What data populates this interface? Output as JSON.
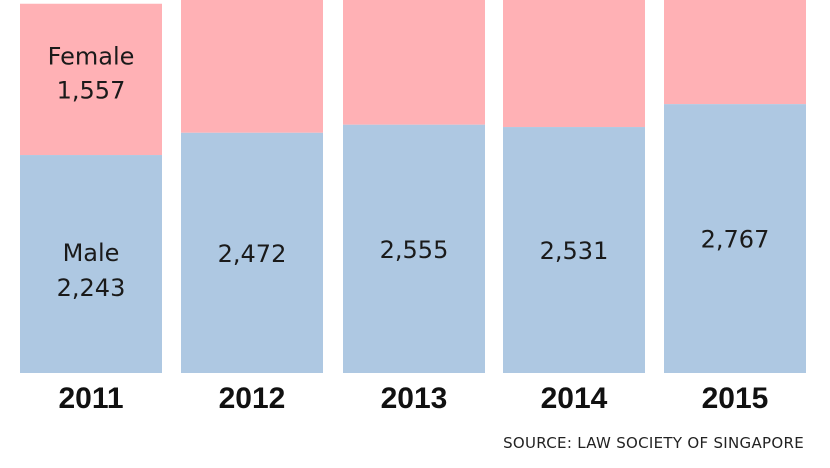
{
  "chart_data": {
    "type": "bar",
    "stacked": true,
    "categories": [
      "2011",
      "2012",
      "2013",
      "2014",
      "2015"
    ],
    "series": [
      {
        "name": "Male",
        "values": [
          2243,
          2472,
          2555,
          2531,
          2767
        ],
        "color": "#aec8e2"
      },
      {
        "name": "Female",
        "values": [
          1557,
          null,
          null,
          null,
          null
        ],
        "color": "#ffb1b5"
      }
    ],
    "data_labels": {
      "Male": [
        "2,243",
        "2,472",
        "2,555",
        "2,531",
        "2,767"
      ],
      "Female": [
        "1,557",
        "",
        "",
        "",
        ""
      ]
    },
    "series_labels_on_first_bar": true,
    "ylim": [
      0,
      3890
    ],
    "grid": false,
    "legend": "none"
  },
  "source": "SOURCE: LAW SOCIETY OF SINGAPORE"
}
